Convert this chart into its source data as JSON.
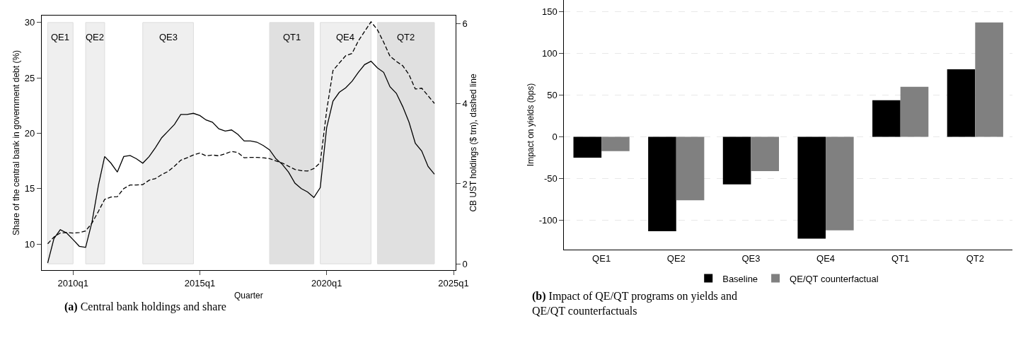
{
  "chart_data": [
    {
      "type": "line",
      "title": "(a) Central bank holdings and share",
      "xlabel": "Quarter",
      "ylabel": "Share of the central bank in government debt (%)",
      "y2label": "CB UST holdings ($ trn), dashed line",
      "x": [
        "2009-01",
        "2009-04",
        "2009-07",
        "2009-10",
        "2010-01",
        "2010-04",
        "2010-07",
        "2010-10",
        "2011-01",
        "2011-04",
        "2011-07",
        "2011-10",
        "2012-01",
        "2012-04",
        "2012-07",
        "2012-10",
        "2013-01",
        "2013-04",
        "2013-07",
        "2013-10",
        "2014-01",
        "2014-04",
        "2014-07",
        "2014-10",
        "2015-01",
        "2015-04",
        "2015-07",
        "2015-10",
        "2016-01",
        "2016-04",
        "2016-07",
        "2016-10",
        "2017-01",
        "2017-04",
        "2017-07",
        "2017-10",
        "2018-01",
        "2018-04",
        "2018-07",
        "2018-10",
        "2019-01",
        "2019-04",
        "2019-07",
        "2019-10",
        "2020-01",
        "2020-04",
        "2020-07",
        "2020-10",
        "2021-01",
        "2021-04",
        "2021-07",
        "2021-10",
        "2022-01",
        "2022-04",
        "2022-07",
        "2022-10",
        "2023-01",
        "2023-04",
        "2023-07",
        "2023-10",
        "2024-01",
        "2024-04"
      ],
      "xlim": [
        "2008-10-05",
        "2025-01-30"
      ],
      "xticks": [
        {
          "value": "2010-01",
          "label": "2010q1"
        },
        {
          "value": "2015-01",
          "label": "2015q1"
        },
        {
          "value": "2020-01",
          "label": "2020q1"
        },
        {
          "value": "2025-01",
          "label": "2025q1"
        }
      ],
      "ylim": [
        7.64,
        30.64
      ],
      "yticks": [
        10,
        15,
        20,
        25,
        30
      ],
      "y2lim": [
        -0.16,
        6.21
      ],
      "y2ticks": [
        0,
        2,
        4,
        6
      ],
      "line_style": "solid",
      "series": [
        {
          "color": "#000000",
          "values": [
            8.3,
            10.5,
            11.3,
            11.0,
            10.4,
            9.8,
            9.7,
            12.0,
            15.3,
            17.9,
            17.3,
            16.5,
            17.9,
            18.0,
            17.7,
            17.3,
            17.9,
            18.7,
            19.6,
            20.2,
            20.8,
            21.7,
            21.7,
            21.8,
            21.6,
            21.2,
            21.0,
            20.4,
            20.2,
            20.3,
            19.9,
            19.3,
            19.3,
            19.2,
            18.9,
            18.5,
            17.7,
            17.2,
            16.5,
            15.5,
            15.0,
            14.7,
            14.2,
            15.1,
            20.5,
            22.9,
            23.7,
            24.1,
            24.7,
            25.5,
            26.2,
            26.5,
            25.9,
            25.5,
            24.2,
            23.6,
            22.4,
            21.0,
            19.1,
            18.4,
            17.0,
            16.3
          ]
        },
        {
          "color": "#000000",
          "axis": "y2",
          "line_style": "dashed",
          "values": [
            0.5,
            0.67,
            0.77,
            0.78,
            0.77,
            0.78,
            0.82,
            1.02,
            1.31,
            1.61,
            1.67,
            1.68,
            1.88,
            1.97,
            1.97,
            1.98,
            2.09,
            2.13,
            2.23,
            2.31,
            2.44,
            2.59,
            2.65,
            2.72,
            2.77,
            2.7,
            2.72,
            2.7,
            2.75,
            2.81,
            2.78,
            2.65,
            2.66,
            2.66,
            2.65,
            2.63,
            2.57,
            2.52,
            2.44,
            2.36,
            2.33,
            2.32,
            2.38,
            2.53,
            3.83,
            4.83,
            5.02,
            5.2,
            5.26,
            5.57,
            5.81,
            6.05,
            5.85,
            5.54,
            5.19,
            5.06,
            4.95,
            4.73,
            4.37,
            4.39,
            4.2,
            4.01
          ]
        }
      ],
      "bands": [
        {
          "axis": "x",
          "from": "2009-01",
          "to": "2010-01",
          "label": "QE1",
          "color": "#efefef"
        },
        {
          "axis": "x",
          "from": "2010-07",
          "to": "2011-04",
          "label": "QE2",
          "color": "#efefef"
        },
        {
          "axis": "x",
          "from": "2012-10",
          "to": "2014-10",
          "label": "QE3",
          "color": "#efefef"
        },
        {
          "axis": "x",
          "from": "2017-10",
          "to": "2019-07",
          "label": "QT1",
          "color": "#e0e0e0"
        },
        {
          "axis": "x",
          "from": "2019-10",
          "to": "2021-10",
          "label": "QE4",
          "color": "#efefef"
        },
        {
          "axis": "x",
          "from": "2022-01",
          "to": "2024-04",
          "label": "QT2",
          "color": "#e0e0e0"
        }
      ]
    },
    {
      "type": "bar",
      "title": "(b) Impact of QE/QT programs on yields and QE/QT counterfactuals",
      "ylabel": "Impact on yields (bps)",
      "categories": [
        "QE1",
        "QE2",
        "QE3",
        "QE4",
        "QT1",
        "QT2"
      ],
      "ylim": [
        -135,
        164
      ],
      "yticks": [
        -100,
        -50,
        0,
        50,
        100,
        150
      ],
      "grid": "y",
      "legend": "bottom",
      "series": [
        {
          "name": "Baseline",
          "color": "#000000",
          "values": [
            -25,
            -113,
            -57,
            -122,
            44,
            81
          ]
        },
        {
          "name": "QE/QT counterfactual",
          "color": "#808080",
          "values": [
            -17,
            -76,
            -41,
            -112,
            60,
            137
          ]
        }
      ]
    }
  ]
}
